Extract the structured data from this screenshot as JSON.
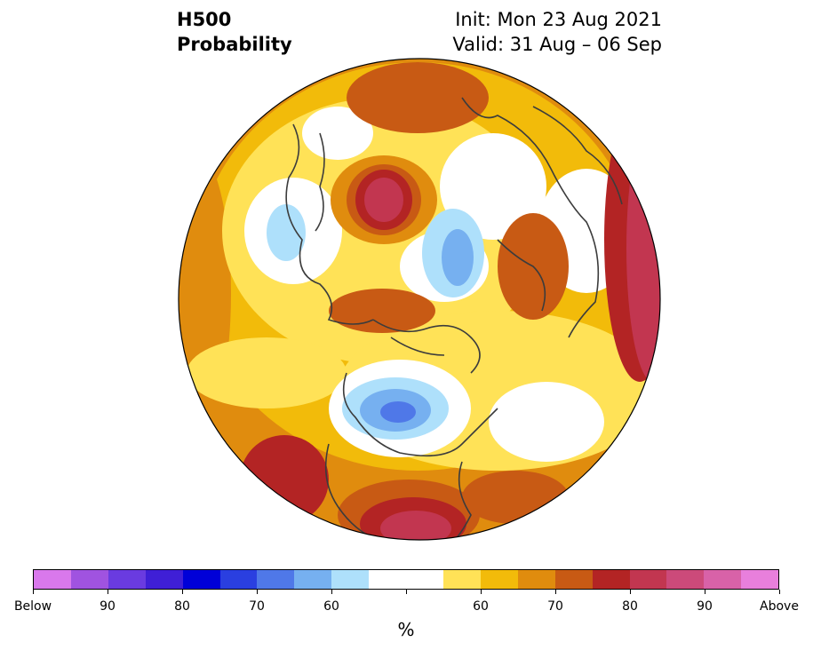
{
  "title": {
    "line1": "H500",
    "line2": "Probability",
    "init": "Init: Mon 23 Aug 2021",
    "valid": "Valid: 31 Aug – 06 Sep"
  },
  "colorbar": {
    "colors": [
      "#d978ec",
      "#a053e0",
      "#6a3be0",
      "#3f1fd6",
      "#0000d8",
      "#2a3fe0",
      "#4f78e8",
      "#76b0f0",
      "#aee0fb",
      "#ffffff",
      "#ffffff",
      "#ffe257",
      "#f2bb0a",
      "#e08c0e",
      "#c85a14",
      "#b32424",
      "#c23650",
      "#cc4a7a",
      "#d862a8",
      "#e87fdc"
    ],
    "labels": [
      "Below",
      "90",
      "80",
      "70",
      "60",
      "",
      "",
      "60",
      "70",
      "80",
      "90",
      "Above"
    ],
    "unit": "%"
  },
  "map_colors": {
    "ocean_base": "#f2bb0a",
    "yellow": "#ffe257",
    "gold": "#f2bb0a",
    "orange": "#e08c0e",
    "dark_orange": "#c85a14",
    "red": "#b32424",
    "crimson": "#c23650",
    "light_blue": "#aee0fb",
    "mid_blue": "#76b0f0",
    "blue": "#4f78e8",
    "coast": "#3c3c3c"
  }
}
